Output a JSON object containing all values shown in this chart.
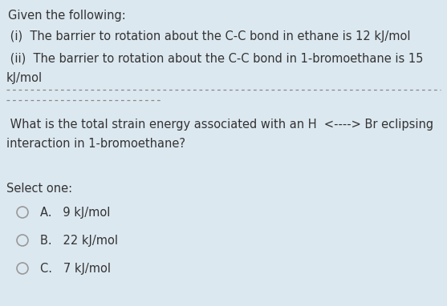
{
  "background_color": "#dce8f0",
  "title_text": "Given the following:",
  "line1": " (i)  The barrier to rotation about the C-C bond in ethane is 12 kJ/mol",
  "line2_part1": " (ii)  The barrier to rotation about the C-C bond in 1-bromoethane is 15",
  "line2_part2": "kJ/mol",
  "question_line1": " What is the total strain energy associated with an H  <----> Br eclipsing",
  "question_line2": "interaction in 1-bromoethane?",
  "select_text": "Select one:",
  "options": [
    {
      "label": "A.   9 kJ/mol"
    },
    {
      "label": "B.   22 kJ/mol"
    },
    {
      "label": "C.   7 kJ/mol"
    }
  ],
  "font_size_main": 10.5,
  "text_color": "#333333",
  "circle_edge_color": "#999999"
}
